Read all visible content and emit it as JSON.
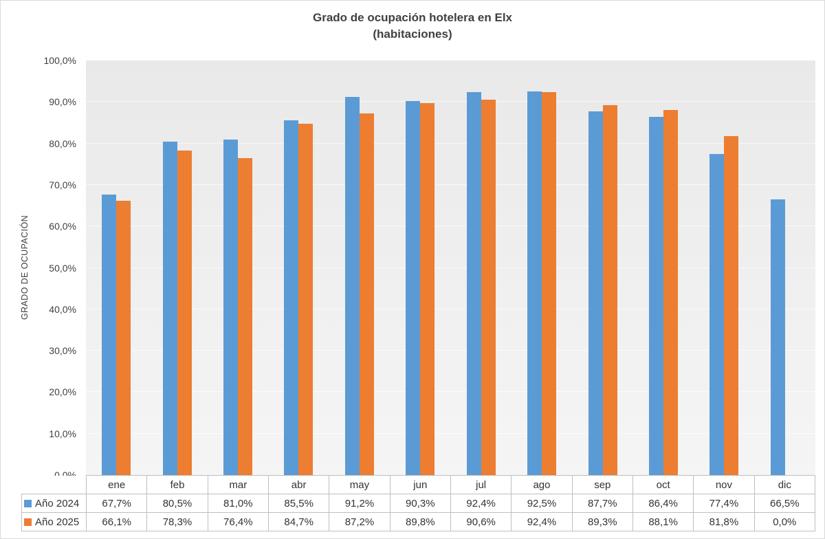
{
  "chart": {
    "title_line1": "Grado de ocupación hotelera en Elx",
    "title_line2": "(habitaciones)"
  },
  "chart_data": {
    "type": "bar",
    "title": "Grado de ocupación hotelera en Elx",
    "subtitle": "(habitaciones)",
    "xlabel": "",
    "ylabel": "GRADO DE OCUPACIÓN",
    "ylim": [
      0,
      100
    ],
    "y_tick_step": 10,
    "y_tick_labels": [
      "0,0%",
      "10,0%",
      "20,0%",
      "30,0%",
      "40,0%",
      "50,0%",
      "60,0%",
      "70,0%",
      "80,0%",
      "90,0%",
      "100,0%"
    ],
    "categories": [
      "ene",
      "feb",
      "mar",
      "abr",
      "may",
      "jun",
      "jul",
      "ago",
      "sep",
      "oct",
      "nov",
      "dic"
    ],
    "series": [
      {
        "name": "Año 2024",
        "color": "#5B9BD5",
        "values": [
          67.7,
          80.5,
          81.0,
          85.5,
          91.2,
          90.3,
          92.4,
          92.5,
          87.7,
          86.4,
          77.4,
          66.5
        ]
      },
      {
        "name": "Año 2025",
        "color": "#ED7D31",
        "values": [
          66.1,
          78.3,
          76.4,
          84.7,
          87.2,
          89.8,
          90.6,
          92.4,
          89.3,
          88.1,
          81.8,
          0.0
        ]
      }
    ],
    "legend_position": "data-table-left",
    "grid": true,
    "data_table": true
  },
  "table": {
    "rows": [
      {
        "label": "Año 2024",
        "cells": [
          "67,7%",
          "80,5%",
          "81,0%",
          "85,5%",
          "91,2%",
          "90,3%",
          "92,4%",
          "92,5%",
          "87,7%",
          "86,4%",
          "77,4%",
          "66,5%"
        ]
      },
      {
        "label": "Año 2025",
        "cells": [
          "66,1%",
          "78,3%",
          "76,4%",
          "84,7%",
          "87,2%",
          "89,8%",
          "90,6%",
          "92,4%",
          "89,3%",
          "88,1%",
          "81,8%",
          "0,0%"
        ]
      }
    ]
  },
  "colors": {
    "series_2024": "#5B9BD5",
    "series_2025": "#ED7D31",
    "plot_background": "#ECECEC",
    "table_border": "#BFBFBF",
    "text": "#404040"
  }
}
